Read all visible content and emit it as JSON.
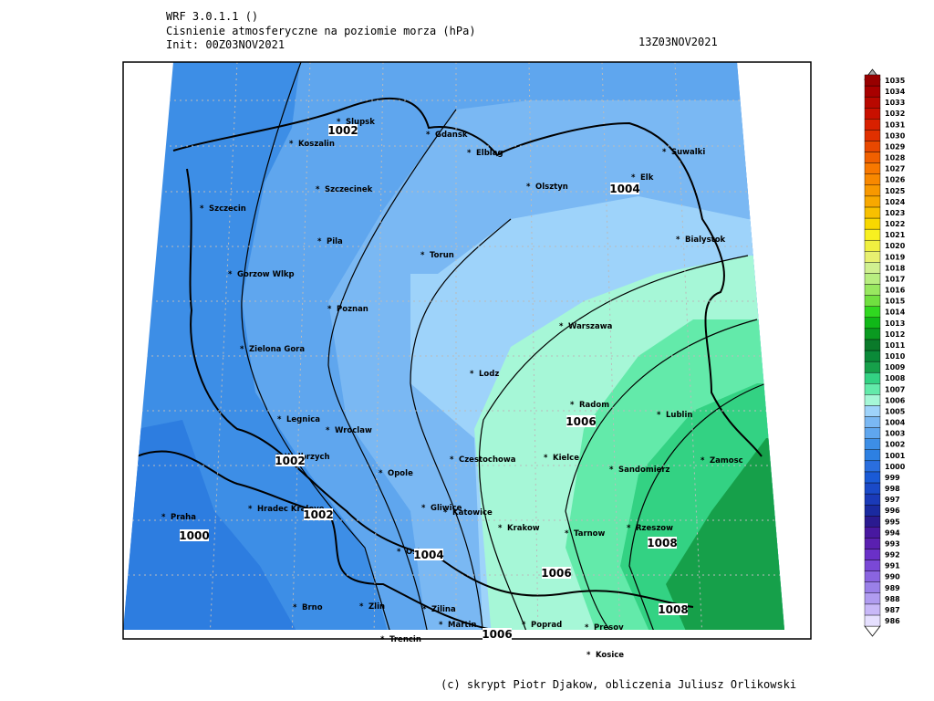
{
  "header": {
    "model": "WRF 3.0.1.1 ()",
    "title": "Cisnienie atmosferyczne na poziomie morza (hPa)",
    "init": "Init: 00Z03NOV2021",
    "valid": "13Z03NOV2021"
  },
  "cities": [
    "Slupsk",
    "Koszalin",
    "Gdansk",
    "Elblag",
    "Suwalki",
    "Elk",
    "Szczecinek",
    "Olsztyn",
    "Szczecin",
    "Bialystok",
    "Pila",
    "Torun",
    "Gorzow Wlkp",
    "Poznan",
    "Warszawa",
    "Zielona Gora",
    "Lodz",
    "Radom",
    "Lublin",
    "Legnica",
    "Wroclaw",
    "Kielce",
    "Walbrzych",
    "Czestochowa",
    "Opole",
    "Sandomierz",
    "Zamosc",
    "Gliwice",
    "Katowice",
    "Hradec Kralove",
    "Praha",
    "Krakow",
    "Tarnow",
    "Rzeszow",
    "Ostrava",
    "Brno",
    "Zlin",
    "Zilina",
    "Martin",
    "Poprad",
    "Presov",
    "Trencin",
    "Kosice"
  ],
  "contour_labels": [
    "1002",
    "1004",
    "1006",
    "1002",
    "1002",
    "1000",
    "1004",
    "1006",
    "1008",
    "1008",
    "1006"
  ],
  "colorbar": {
    "levels": [
      986,
      987,
      988,
      989,
      990,
      991,
      992,
      993,
      994,
      995,
      996,
      997,
      998,
      999,
      1000,
      1001,
      1002,
      1003,
      1004,
      1005,
      1006,
      1007,
      1008,
      1009,
      1010,
      1011,
      1012,
      1013,
      1014,
      1015,
      1016,
      1017,
      1018,
      1019,
      1020,
      1021,
      1022,
      1023,
      1024,
      1025,
      1026,
      1027,
      1028,
      1029,
      1030,
      1031,
      1032,
      1033,
      1034,
      1035
    ],
    "colors": [
      "#e6e0ff",
      "#c8b8f8",
      "#b09cf0",
      "#9a80e8",
      "#8a64e0",
      "#7a48d6",
      "#6a30c8",
      "#5a20b0",
      "#4818a0",
      "#2a1a90",
      "#1a2aa0",
      "#1a3ab8",
      "#1a4ac8",
      "#1a5ad6",
      "#2a6ede",
      "#2d80e2",
      "#3d8ee6",
      "#5fa6ee",
      "#7ab8f3",
      "#9ed3fa",
      "#a6f7d7",
      "#63eaaa",
      "#33d283",
      "#16a04a",
      "#0a8a38",
      "#0a7a2a",
      "#0a9a20",
      "#10b818",
      "#30d820",
      "#70e040",
      "#98e860",
      "#b8ee80",
      "#d0f090",
      "#e8f070",
      "#f0f040",
      "#f8f020",
      "#f8d800",
      "#f8c000",
      "#f8a800",
      "#f89800",
      "#f88800",
      "#f87800",
      "#f06000",
      "#e84800",
      "#e03000",
      "#d82000",
      "#c81000",
      "#b80800",
      "#a80000",
      "#980000"
    ]
  },
  "footer": "(c) skrypt Piotr Djakow, obliczenia Juliusz Orlikowski"
}
